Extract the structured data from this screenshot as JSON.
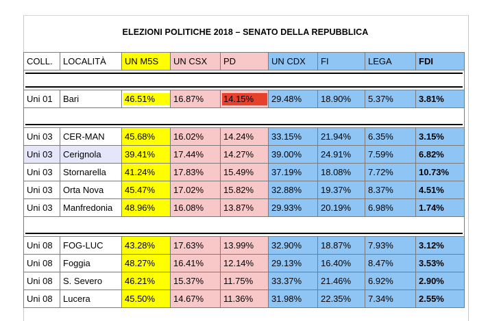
{
  "title": "ELEZIONI POLITICHE 2018 – SENATO DELLA REPUBBLICA",
  "headers": [
    "COLL.",
    "LOCALITÀ",
    "UN M5S",
    "UN CSX",
    "PD",
    "UN CDX",
    "FI",
    "LEGA",
    "FDI"
  ],
  "groups": [
    {
      "rows": [
        {
          "coll": "Uni 01",
          "loc": "Bari",
          "m5s": "46.51%",
          "csx": "16.87%",
          "pd": "14.15%",
          "cdx": "29.48%",
          "fi": "18.90%",
          "lega": "5.37%",
          "fdi": "3.81%"
        }
      ]
    },
    {
      "rows": [
        {
          "coll": "Uni 03",
          "loc": "CER-MAN",
          "m5s": "45.68%",
          "csx": "16.02%",
          "pd": "14.24%",
          "cdx": "33.15%",
          "fi": "21.94%",
          "lega": "6.35%",
          "fdi": "3.15%"
        },
        {
          "coll": "Uni 03",
          "loc": "Cerignola",
          "m5s": "39.41%",
          "csx": "17.44%",
          "pd": "14.27%",
          "cdx": "39.00%",
          "fi": "24.91%",
          "lega": "7.59%",
          "fdi": "6.82%"
        },
        {
          "coll": "Uni 03",
          "loc": "Stornarella",
          "m5s": "41.24%",
          "csx": "17.83%",
          "pd": "15.49%",
          "cdx": "37.19%",
          "fi": "18.08%",
          "lega": "7.72%",
          "fdi": "10.73%"
        },
        {
          "coll": "Uni 03",
          "loc": "Orta Nova",
          "m5s": "45.47%",
          "csx": "17.02%",
          "pd": "15.82%",
          "cdx": "32.88%",
          "fi": "19.37%",
          "lega": "8.37%",
          "fdi": "4.51%"
        },
        {
          "coll": "Uni 03",
          "loc": "Manfredonia",
          "m5s": "48.96%",
          "csx": "16.08%",
          "pd": "13.87%",
          "cdx": "29.93%",
          "fi": "20.19%",
          "lega": "6.98%",
          "fdi": "1.74%"
        }
      ]
    },
    {
      "rows": [
        {
          "coll": "Uni 08",
          "loc": "FOG-LUC",
          "m5s": "43.28%",
          "csx": "17.63%",
          "pd": "13.99%",
          "cdx": "32.90%",
          "fi": "18.87%",
          "lega": "7.93%",
          "fdi": "3.12%"
        },
        {
          "coll": "Uni 08",
          "loc": "Foggia",
          "m5s": "48.27%",
          "csx": "16.41%",
          "pd": "12.14%",
          "cdx": "29.13%",
          "fi": "16.40%",
          "lega": "8.47%",
          "fdi": "3.53%"
        },
        {
          "coll": "Uni 08",
          "loc": "S. Severo",
          "m5s": "46.21%",
          "csx": "15.37%",
          "pd": "11.75%",
          "cdx": "33.37%",
          "fi": "21.46%",
          "lega": "6.92%",
          "fdi": "2.90%"
        },
        {
          "coll": "Uni 08",
          "loc": "Lucera",
          "m5s": "45.50%",
          "csx": "14.67%",
          "pd": "11.36%",
          "cdx": "31.98%",
          "fi": "22.35%",
          "lega": "7.34%",
          "fdi": "2.55%"
        }
      ]
    }
  ],
  "colors": {
    "m5s": "#ffff00",
    "csx": "#f8c8c8",
    "cdx": "#8fc5f5",
    "highlight_pd_bari": "#e8412b",
    "highlight_cerignola": "#e6e6fa"
  }
}
